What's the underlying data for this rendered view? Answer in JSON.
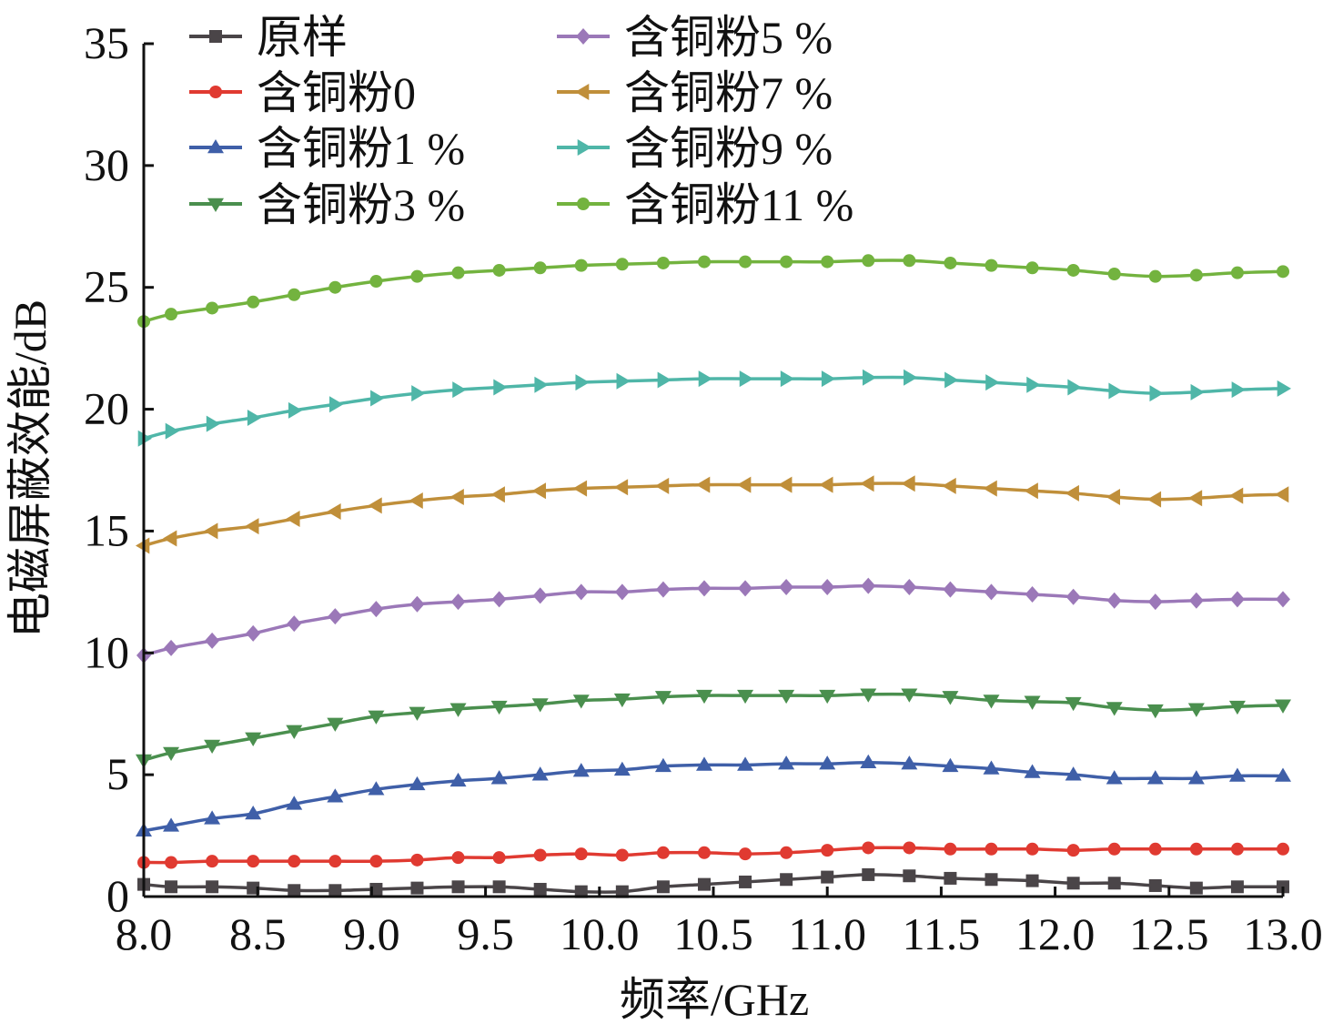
{
  "chart_data": {
    "type": "line",
    "xlabel": "频率/GHz",
    "ylabel": "电磁屏蔽效能/dB",
    "xlim": [
      8.0,
      13.0
    ],
    "ylim": [
      0,
      35
    ],
    "x_ticks": [
      "8.0",
      "8.5",
      "9.0",
      "9.5",
      "10.0",
      "10.5",
      "11.0",
      "11.5",
      "12.0",
      "12.5",
      "13.0"
    ],
    "y_ticks": [
      "0",
      "5",
      "10",
      "15",
      "20",
      "25",
      "30",
      "35"
    ],
    "grid": false,
    "legend_position": "top",
    "x": [
      8.0,
      8.12,
      8.3,
      8.48,
      8.66,
      8.84,
      9.02,
      9.2,
      9.38,
      9.56,
      9.74,
      9.92,
      10.1,
      10.28,
      10.46,
      10.64,
      10.82,
      11.0,
      11.18,
      11.36,
      11.54,
      11.72,
      11.9,
      12.08,
      12.26,
      12.44,
      12.62,
      12.8,
      13.0
    ],
    "series": [
      {
        "name": "原样",
        "marker": "square",
        "color": "#4a4548",
        "values": [
          0.5,
          0.4,
          0.4,
          0.35,
          0.25,
          0.25,
          0.3,
          0.35,
          0.4,
          0.4,
          0.3,
          0.2,
          0.2,
          0.4,
          0.5,
          0.6,
          0.7,
          0.8,
          0.9,
          0.85,
          0.75,
          0.7,
          0.65,
          0.55,
          0.55,
          0.45,
          0.35,
          0.4,
          0.4
        ]
      },
      {
        "name": "含铜粉0",
        "marker": "circle",
        "color": "#e03a31",
        "values": [
          1.4,
          1.4,
          1.45,
          1.45,
          1.45,
          1.45,
          1.45,
          1.5,
          1.6,
          1.6,
          1.7,
          1.75,
          1.7,
          1.8,
          1.8,
          1.75,
          1.8,
          1.9,
          2.0,
          2.0,
          1.95,
          1.95,
          1.95,
          1.9,
          1.95,
          1.95,
          1.95,
          1.95,
          1.95
        ]
      },
      {
        "name": "含铜粉1 %",
        "marker": "triangle-up",
        "color": "#3f5fa8",
        "values": [
          2.7,
          2.9,
          3.2,
          3.4,
          3.8,
          4.1,
          4.4,
          4.6,
          4.75,
          4.85,
          5.0,
          5.15,
          5.2,
          5.35,
          5.4,
          5.4,
          5.45,
          5.45,
          5.5,
          5.45,
          5.35,
          5.25,
          5.1,
          5.0,
          4.85,
          4.85,
          4.85,
          4.95,
          4.95
        ]
      },
      {
        "name": "含铜粉3 %",
        "marker": "triangle-down",
        "color": "#4a8f4e",
        "values": [
          5.6,
          5.9,
          6.2,
          6.5,
          6.8,
          7.1,
          7.4,
          7.55,
          7.7,
          7.8,
          7.9,
          8.05,
          8.1,
          8.2,
          8.25,
          8.25,
          8.25,
          8.25,
          8.3,
          8.3,
          8.2,
          8.05,
          8.0,
          7.95,
          7.75,
          7.65,
          7.7,
          7.8,
          7.85
        ]
      },
      {
        "name": "含铜粉5 %",
        "marker": "diamond",
        "color": "#9b78b8",
        "values": [
          9.9,
          10.2,
          10.5,
          10.8,
          11.2,
          11.5,
          11.8,
          12.0,
          12.1,
          12.2,
          12.35,
          12.5,
          12.5,
          12.6,
          12.65,
          12.65,
          12.7,
          12.7,
          12.75,
          12.7,
          12.6,
          12.5,
          12.4,
          12.3,
          12.15,
          12.1,
          12.15,
          12.2,
          12.2
        ]
      },
      {
        "name": "含铜粉7 %",
        "marker": "triangle-left",
        "color": "#c08f3a",
        "values": [
          14.4,
          14.7,
          15.0,
          15.2,
          15.5,
          15.8,
          16.05,
          16.25,
          16.4,
          16.5,
          16.65,
          16.75,
          16.8,
          16.85,
          16.9,
          16.9,
          16.9,
          16.9,
          16.95,
          16.95,
          16.85,
          16.75,
          16.65,
          16.55,
          16.4,
          16.3,
          16.35,
          16.45,
          16.5
        ]
      },
      {
        "name": "含铜粉9 %",
        "marker": "triangle-right",
        "color": "#4fb6a8",
        "values": [
          18.8,
          19.1,
          19.4,
          19.65,
          19.95,
          20.2,
          20.45,
          20.65,
          20.8,
          20.9,
          21.0,
          21.1,
          21.15,
          21.2,
          21.25,
          21.25,
          21.25,
          21.25,
          21.3,
          21.3,
          21.2,
          21.1,
          21.0,
          20.9,
          20.75,
          20.65,
          20.7,
          20.8,
          20.85
        ]
      },
      {
        "name": "含铜粉11 %",
        "marker": "circle",
        "color": "#73b33f",
        "values": [
          23.6,
          23.9,
          24.15,
          24.4,
          24.7,
          25.0,
          25.25,
          25.45,
          25.6,
          25.7,
          25.8,
          25.9,
          25.95,
          26.0,
          26.05,
          26.05,
          26.05,
          26.05,
          26.1,
          26.1,
          26.0,
          25.9,
          25.8,
          25.7,
          25.55,
          25.45,
          25.5,
          25.6,
          25.65
        ]
      }
    ]
  }
}
